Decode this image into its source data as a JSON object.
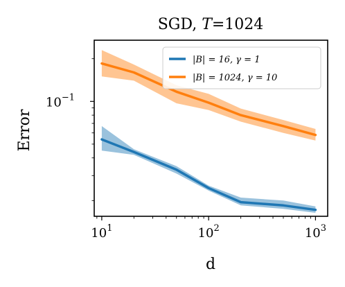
{
  "chart_data": {
    "type": "line",
    "title": "SGD, T=1024",
    "title_parts": {
      "prefix": "SGD, ",
      "var": "T",
      "suffix": "=1024"
    },
    "xlabel": "d",
    "ylabel": "Error",
    "xscale": "log",
    "yscale": "log",
    "xlim": [
      8.5,
      1300
    ],
    "ylim": [
      0.0155,
      0.27
    ],
    "x": [
      10,
      20,
      50,
      100,
      200,
      500,
      1000
    ],
    "xticks": [
      {
        "value": 10,
        "base": "10",
        "exp": "1"
      },
      {
        "value": 100,
        "base": "10",
        "exp": "2"
      },
      {
        "value": 1000,
        "base": "10",
        "exp": "3"
      }
    ],
    "yticks": [
      {
        "value": 0.1,
        "base": "10",
        "exp": "−1"
      }
    ],
    "grid": false,
    "legend_position": "top-right",
    "series": [
      {
        "name": "|B| = 16, γ = 1",
        "color": "#1f77b4",
        "values": [
          0.054,
          0.044,
          0.033,
          0.0245,
          0.0195,
          0.0185,
          0.0172
        ],
        "lower": [
          0.045,
          0.042,
          0.031,
          0.0235,
          0.0185,
          0.0175,
          0.0164
        ],
        "upper": [
          0.067,
          0.046,
          0.035,
          0.0255,
          0.021,
          0.02,
          0.0182
        ]
      },
      {
        "name": "|B| = 1024, γ = 10",
        "color": "#ff7f0e",
        "values": [
          0.185,
          0.16,
          0.117,
          0.098,
          0.08,
          0.067,
          0.058
        ],
        "lower": [
          0.15,
          0.14,
          0.097,
          0.087,
          0.072,
          0.06,
          0.053
        ],
        "upper": [
          0.23,
          0.182,
          0.13,
          0.113,
          0.089,
          0.074,
          0.064
        ]
      }
    ]
  }
}
